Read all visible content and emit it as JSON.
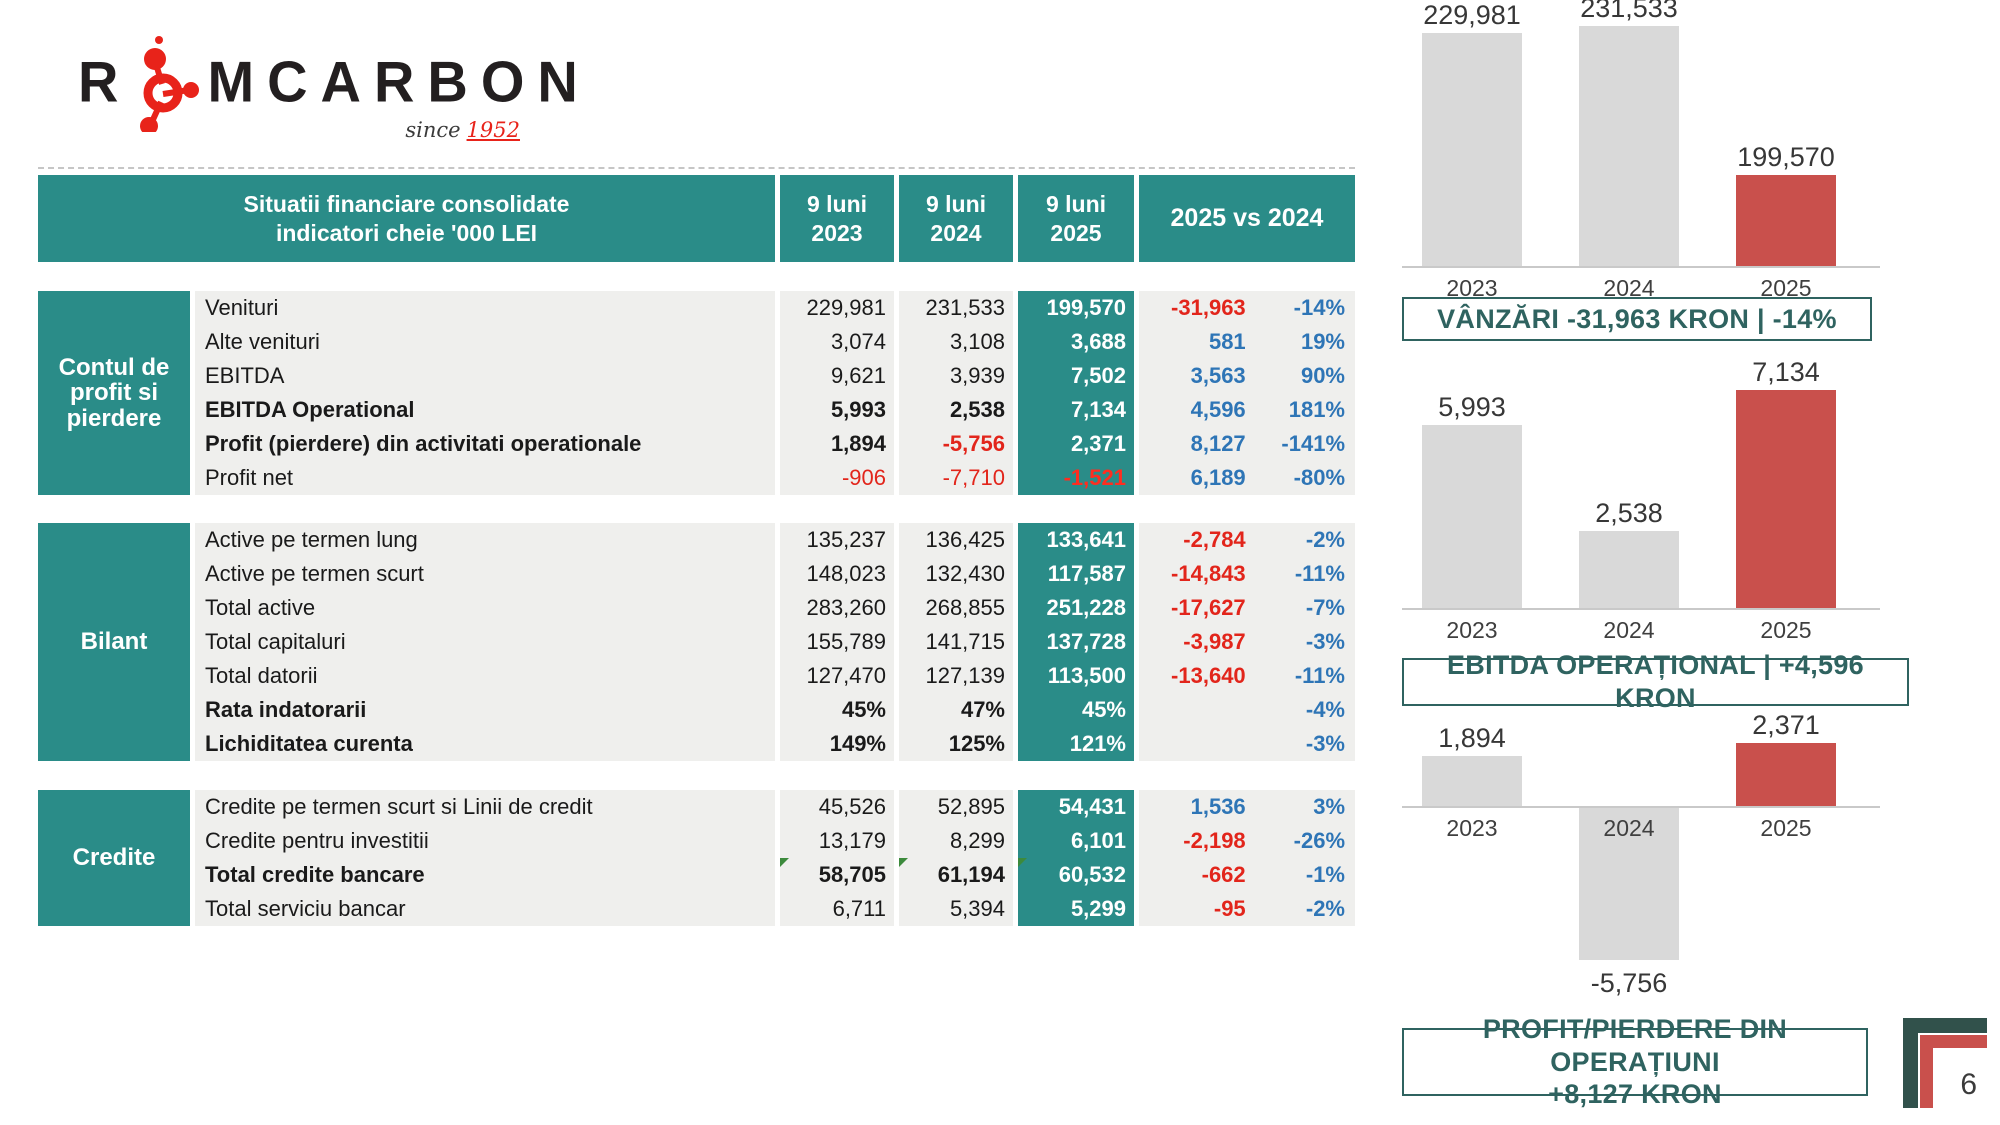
{
  "page": {
    "number": "6"
  },
  "logo": {
    "brand_prefix": "R",
    "brand_suffix": "MCARBON",
    "since_label": "since",
    "since_year": "1952",
    "brand_color": "#231F20",
    "accent_color": "#E8231A"
  },
  "colors": {
    "teal": "#2A8C88",
    "row_bg": "#EFEFED",
    "red_text": "#E2251B",
    "blue_text": "#2E75B6",
    "bar_gray": "#D9D9D9",
    "bar_red": "#C9504C",
    "caption_teal": "#2F6360",
    "corner_dark": "#31514B",
    "marker_green": "#3C8A3C"
  },
  "table": {
    "header": {
      "title_line1": "Situatii financiare consolidate",
      "title_line2": "indicatori cheie '000 LEI",
      "period_label": "9 luni",
      "years": [
        "2023",
        "2024",
        "2025"
      ],
      "compare_label": "2025 vs 2024"
    },
    "blocks": [
      {
        "group": "Contul de profit si pierdere",
        "rows": [
          {
            "label": "Venituri",
            "v2023": "229,981",
            "v2024": "231,533",
            "v2025": "199,570",
            "diff": "-31,963",
            "pct": "-14%",
            "bold": false,
            "marker": false
          },
          {
            "label": "Alte venituri",
            "v2023": "3,074",
            "v2024": "3,108",
            "v2025": "3,688",
            "diff": "581",
            "pct": "19%",
            "bold": false,
            "marker": false
          },
          {
            "label": "EBITDA",
            "v2023": "9,621",
            "v2024": "3,939",
            "v2025": "7,502",
            "diff": "3,563",
            "pct": "90%",
            "bold": false,
            "marker": false
          },
          {
            "label": "EBITDA Operational",
            "v2023": "5,993",
            "v2024": "2,538",
            "v2025": "7,134",
            "diff": "4,596",
            "pct": "181%",
            "bold": true,
            "marker": false
          },
          {
            "label": "Profit (pierdere) din activitati operationale",
            "v2023": "1,894",
            "v2024": "-5,756",
            "v2025": "2,371",
            "diff": "8,127",
            "pct": "-141%",
            "bold": true,
            "marker": false
          },
          {
            "label": "Profit net",
            "v2023": "-906",
            "v2024": "-7,710",
            "v2025": "-1,521",
            "diff": "6,189",
            "pct": "-80%",
            "bold": false,
            "marker": false
          }
        ]
      },
      {
        "group": "Bilant",
        "rows": [
          {
            "label": "Active pe termen lung",
            "v2023": "135,237",
            "v2024": "136,425",
            "v2025": "133,641",
            "diff": "-2,784",
            "pct": "-2%",
            "bold": false,
            "marker": false
          },
          {
            "label": "Active pe termen scurt",
            "v2023": "148,023",
            "v2024": "132,430",
            "v2025": "117,587",
            "diff": "-14,843",
            "pct": "-11%",
            "bold": false,
            "marker": false
          },
          {
            "label": "Total active",
            "v2023": "283,260",
            "v2024": "268,855",
            "v2025": "251,228",
            "diff": "-17,627",
            "pct": "-7%",
            "bold": false,
            "marker": false
          },
          {
            "label": "Total capitaluri",
            "v2023": "155,789",
            "v2024": "141,715",
            "v2025": "137,728",
            "diff": "-3,987",
            "pct": "-3%",
            "bold": false,
            "marker": false
          },
          {
            "label": "Total datorii",
            "v2023": "127,470",
            "v2024": "127,139",
            "v2025": "113,500",
            "diff": "-13,640",
            "pct": "-11%",
            "bold": false,
            "marker": false
          },
          {
            "label": "Rata indatorarii",
            "v2023": "45%",
            "v2024": "47%",
            "v2025": "45%",
            "diff": "",
            "pct": "-4%",
            "bold": true,
            "marker": false
          },
          {
            "label": "Lichiditatea curenta",
            "v2023": "149%",
            "v2024": "125%",
            "v2025": "121%",
            "diff": "",
            "pct": "-3%",
            "bold": true,
            "marker": false
          }
        ]
      },
      {
        "group": "Credite",
        "rows": [
          {
            "label": "Credite pe termen scurt si Linii de credit",
            "v2023": "45,526",
            "v2024": "52,895",
            "v2025": "54,431",
            "diff": "1,536",
            "pct": "3%",
            "bold": false,
            "marker": false
          },
          {
            "label": "Credite pentru investitii",
            "v2023": "13,179",
            "v2024": "8,299",
            "v2025": "6,101",
            "diff": "-2,198",
            "pct": "-26%",
            "bold": false,
            "marker": false
          },
          {
            "label": "Total credite bancare",
            "v2023": "58,705",
            "v2024": "61,194",
            "v2025": "60,532",
            "diff": "-662",
            "pct": "-1%",
            "bold": true,
            "marker": true
          },
          {
            "label": "Total serviciu bancar",
            "v2023": "6,711",
            "v2024": "5,394",
            "v2025": "5,299",
            "diff": "-95",
            "pct": "-2%",
            "bold": false,
            "marker": false
          }
        ]
      }
    ]
  },
  "chart_data": [
    {
      "type": "bar",
      "categories": [
        "2023",
        "2024",
        "2025"
      ],
      "values": [
        229981,
        231533,
        199570
      ],
      "value_labels": [
        "229,981",
        "231,533",
        "199,570"
      ],
      "ylim": [
        180000,
        235000
      ],
      "bar_colors": [
        "#D9D9D9",
        "#D9D9D9",
        "#C9504C"
      ],
      "caption_lines": [
        "VÂNZĂRI -31,963 KRON | -14%"
      ],
      "legend": "none",
      "grid": false
    },
    {
      "type": "bar",
      "categories": [
        "2023",
        "2024",
        "2025"
      ],
      "values": [
        5993,
        2538,
        7134
      ],
      "value_labels": [
        "5,993",
        "2,538",
        "7,134"
      ],
      "ylim": [
        0,
        7500
      ],
      "bar_colors": [
        "#D9D9D9",
        "#D9D9D9",
        "#C9504C"
      ],
      "caption_lines": [
        "EBITDA OPERAȚIONAL | +4,596 KRON"
      ],
      "legend": "none",
      "grid": false
    },
    {
      "type": "bar",
      "categories": [
        "2023",
        "2024",
        "2025"
      ],
      "values": [
        1894,
        -5756,
        2371
      ],
      "value_labels": [
        "1,894",
        "-5,756",
        "2,371"
      ],
      "ylim": [
        -6000,
        2500
      ],
      "bar_colors": [
        "#D9D9D9",
        "#D9D9D9",
        "#C9504C"
      ],
      "caption_lines": [
        "PROFIT/PIERDERE DIN OPERAȚIUNI",
        "+8,127 KRON"
      ],
      "legend": "none",
      "grid": false
    }
  ]
}
